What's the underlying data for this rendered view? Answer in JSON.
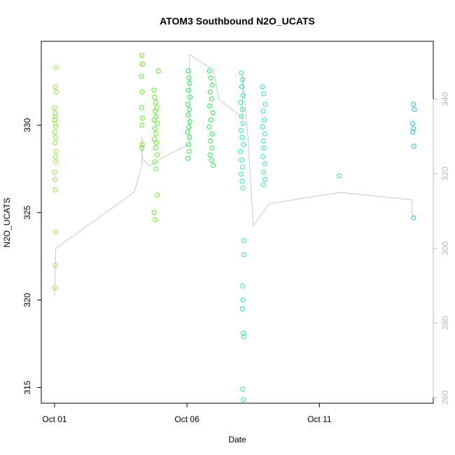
{
  "chart_data": {
    "type": "scatter",
    "title": "ATOM3 Southbound N2O_UCATS",
    "xlabel": "Date",
    "ylabel": "N2O_UCATS",
    "x_ticks": [
      {
        "label": "Oct 01",
        "value": 1
      },
      {
        "label": "Oct 06",
        "value": 6
      },
      {
        "label": "Oct 11",
        "value": 11
      }
    ],
    "y_ticks": [
      315,
      320,
      325,
      330
    ],
    "y2_ticks": [
      260,
      280,
      300,
      320,
      340
    ],
    "xlim": [
      0.5,
      15.3
    ],
    "ylim": [
      314.1,
      334.8
    ],
    "y2lim": [
      258.5,
      355.5
    ],
    "axis_color_right": "#b8b8b8",
    "line_color": "#c8c8c8",
    "grid": false,
    "series": [
      {
        "color": "#8ee03a",
        "points": [
          [
            1.05,
            333.3
          ],
          [
            1.03,
            332.2
          ],
          [
            1.06,
            331.9
          ],
          [
            1.0,
            331.0
          ],
          [
            1.02,
            330.7
          ],
          [
            1.04,
            330.5
          ],
          [
            1.0,
            330.3
          ],
          [
            1.03,
            330.1
          ],
          [
            1.05,
            329.9
          ],
          [
            1.01,
            329.6
          ],
          [
            1.04,
            329.3
          ],
          [
            1.02,
            329.0
          ],
          [
            1.06,
            328.5
          ],
          [
            1.03,
            328.2
          ],
          [
            1.05,
            327.9
          ],
          [
            1.0,
            327.3
          ],
          [
            1.02,
            326.9
          ],
          [
            1.04,
            326.3
          ],
          [
            1.05,
            323.9
          ],
          [
            1.03,
            322.0
          ],
          [
            1.01,
            320.7
          ]
        ]
      },
      {
        "color": "#52ee1a",
        "points": [
          [
            4.3,
            334.0
          ],
          [
            4.32,
            333.5
          ],
          [
            4.28,
            332.8
          ],
          [
            4.31,
            331.9
          ],
          [
            4.29,
            331.0
          ],
          [
            4.32,
            330.4
          ],
          [
            4.3,
            330.0
          ],
          [
            4.31,
            328.9
          ],
          [
            4.29,
            328.7
          ],
          [
            4.75,
            332.0
          ],
          [
            4.78,
            331.6
          ],
          [
            4.82,
            331.3
          ],
          [
            4.86,
            331.0
          ],
          [
            4.8,
            330.8
          ],
          [
            4.84,
            330.5
          ],
          [
            4.76,
            330.3
          ],
          [
            4.88,
            330.1
          ],
          [
            4.79,
            329.8
          ],
          [
            4.83,
            329.5
          ],
          [
            4.77,
            329.2
          ],
          [
            4.85,
            329.0
          ],
          [
            4.81,
            328.7
          ],
          [
            4.87,
            328.3
          ],
          [
            4.79,
            327.9
          ],
          [
            4.83,
            327.5
          ],
          [
            4.88,
            326.0
          ],
          [
            4.92,
            333.1
          ],
          [
            4.76,
            325.0
          ],
          [
            4.8,
            324.6
          ]
        ]
      },
      {
        "color": "#1ee84a",
        "points": [
          [
            6.05,
            333.1
          ],
          [
            6.08,
            332.7
          ],
          [
            6.1,
            332.4
          ],
          [
            6.06,
            332.0
          ],
          [
            6.12,
            331.6
          ],
          [
            6.03,
            331.2
          ],
          [
            6.09,
            330.9
          ],
          [
            6.05,
            330.6
          ],
          [
            6.11,
            330.2
          ],
          [
            6.07,
            329.9
          ],
          [
            6.02,
            329.6
          ],
          [
            6.1,
            329.3
          ],
          [
            6.06,
            328.9
          ],
          [
            6.08,
            328.5
          ],
          [
            6.04,
            328.1
          ],
          [
            6.85,
            333.1
          ],
          [
            6.9,
            332.7
          ],
          [
            6.95,
            332.3
          ],
          [
            6.88,
            331.9
          ],
          [
            6.93,
            331.5
          ],
          [
            6.86,
            331.1
          ],
          [
            6.98,
            330.7
          ],
          [
            6.91,
            330.3
          ],
          [
            6.84,
            329.9
          ],
          [
            6.96,
            329.5
          ],
          [
            6.89,
            329.1
          ],
          [
            6.94,
            328.7
          ],
          [
            6.87,
            328.3
          ],
          [
            6.92,
            328.0
          ],
          [
            6.99,
            327.7
          ]
        ]
      },
      {
        "color": "#22e6a8",
        "points": [
          [
            8.05,
            333.0
          ],
          [
            8.1,
            332.6
          ],
          [
            8.07,
            332.2
          ],
          [
            8.12,
            331.7
          ],
          [
            8.03,
            331.3
          ],
          [
            8.09,
            330.9
          ],
          [
            8.06,
            330.5
          ],
          [
            8.11,
            330.1
          ],
          [
            8.04,
            329.7
          ],
          [
            8.08,
            329.3
          ],
          [
            8.13,
            328.9
          ],
          [
            8.02,
            328.5
          ],
          [
            8.07,
            328.0
          ],
          [
            8.1,
            327.6
          ],
          [
            8.05,
            327.2
          ],
          [
            8.08,
            326.8
          ],
          [
            8.11,
            326.4
          ],
          [
            8.14,
            323.4
          ],
          [
            8.15,
            322.6
          ],
          [
            8.1,
            320.8
          ],
          [
            8.12,
            320.0
          ],
          [
            8.09,
            319.5
          ],
          [
            8.13,
            318.1
          ],
          [
            8.14,
            317.9
          ],
          [
            8.1,
            314.9
          ],
          [
            8.13,
            314.3
          ]
        ]
      },
      {
        "color": "#2adcc0",
        "points": [
          [
            8.85,
            332.2
          ],
          [
            8.9,
            331.8
          ],
          [
            8.95,
            331.2
          ],
          [
            8.88,
            330.8
          ],
          [
            8.92,
            330.3
          ],
          [
            8.86,
            329.9
          ],
          [
            8.94,
            329.5
          ],
          [
            8.89,
            329.1
          ],
          [
            8.91,
            328.7
          ],
          [
            8.87,
            328.2
          ],
          [
            8.93,
            327.8
          ],
          [
            8.9,
            327.3
          ],
          [
            8.95,
            326.9
          ],
          [
            8.88,
            326.6
          ],
          [
            11.75,
            327.1
          ]
        ]
      },
      {
        "color": "#29b5e6",
        "points": [
          [
            14.55,
            331.2
          ],
          [
            14.58,
            330.9
          ],
          [
            14.52,
            330.1
          ],
          [
            14.56,
            329.8
          ],
          [
            14.53,
            329.6
          ],
          [
            14.57,
            328.8
          ],
          [
            14.55,
            324.7
          ]
        ]
      }
    ],
    "altitude_track": [
      [
        1.0,
        287
      ],
      [
        1.02,
        292
      ],
      [
        1.05,
        300
      ],
      [
        4.0,
        315
      ],
      [
        4.3,
        322
      ],
      [
        4.3,
        330
      ],
      [
        4.32,
        324
      ],
      [
        4.6,
        322
      ],
      [
        5.0,
        324
      ],
      [
        6.1,
        328
      ],
      [
        6.1,
        352
      ],
      [
        6.5,
        350
      ],
      [
        7.0,
        348
      ],
      [
        7.2,
        340
      ],
      [
        8.1,
        335
      ],
      [
        8.1,
        347
      ],
      [
        8.3,
        330
      ],
      [
        8.5,
        306
      ],
      [
        9.1,
        312
      ],
      [
        11.8,
        315
      ],
      [
        14.5,
        313
      ],
      [
        14.5,
        310
      ],
      [
        14.55,
        308
      ]
    ]
  }
}
